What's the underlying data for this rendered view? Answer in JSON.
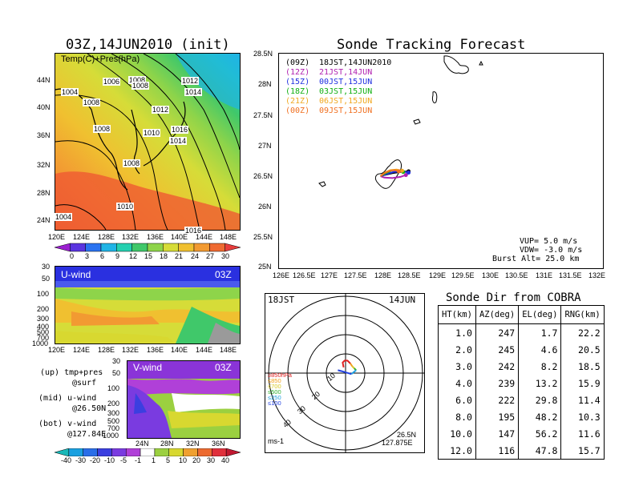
{
  "titles": {
    "left": "03Z,14JUN2010 (init)",
    "right": "Sonde Tracking Forecast",
    "table": "Sonde Dir from COBRA"
  },
  "temp_map": {
    "label": "Temp(C)+Pres(hPa)",
    "lat_labels": [
      "44N",
      "40N",
      "36N",
      "32N",
      "28N",
      "24N"
    ],
    "lon_labels": [
      "120E",
      "124E",
      "128E",
      "132E",
      "136E",
      "140E",
      "144E",
      "148E"
    ],
    "isobars": [
      "1004",
      "1006",
      "1008",
      "1008",
      "1012",
      "1014",
      "1008",
      "1012",
      "1010",
      "1016",
      "1014",
      "1008",
      "1010",
      "1008",
      "1016"
    ],
    "colorbar_labels": [
      "0",
      "3",
      "6",
      "9",
      "12",
      "15",
      "18",
      "21",
      "24",
      "27",
      "30"
    ],
    "colorbar_colors": [
      "#9b1fd0",
      "#5a35e0",
      "#2a73f0",
      "#20b4e6",
      "#25d0b0",
      "#40c86a",
      "#8ed44a",
      "#d6dc38",
      "#f0c030",
      "#f29a32",
      "#ef6a32",
      "#e83c3c"
    ]
  },
  "u_wind": {
    "label": "U-wind",
    "time": "03Z",
    "p_labels": [
      "30",
      "50",
      "100",
      "200",
      "300",
      "400",
      "500",
      "700",
      "1000"
    ],
    "lon_labels": [
      "120E",
      "124E",
      "128E",
      "132E",
      "136E",
      "140E",
      "144E",
      "148E"
    ]
  },
  "v_wind": {
    "label": "V-wind",
    "time": "03Z",
    "p_labels": [
      "30",
      "50",
      "100",
      "200",
      "300",
      "500",
      "700",
      "1000"
    ],
    "lat_labels": [
      "24N",
      "28N",
      "32N",
      "36N"
    ],
    "colorbar_labels": [
      "-40",
      "-30",
      "-20",
      "-10",
      "-5",
      "-1",
      "1",
      "5",
      "10",
      "20",
      "30",
      "40"
    ],
    "colorbar_colors": [
      "#19b8b8",
      "#1aa0e0",
      "#2a6ee8",
      "#3b3fe0",
      "#7a3be0",
      "#b040d8",
      "#ffffff",
      "#9bd040",
      "#d8d830",
      "#f0a030",
      "#ec6a30",
      "#e0303c",
      "#c01830"
    ]
  },
  "legend_notes": [
    {
      "name": "(up) tmp+pres",
      "sub": "@surf"
    },
    {
      "name": "(mid) u-wind",
      "sub": "@26.50N"
    },
    {
      "name": "(bot) v-wind",
      "sub": "@127.84E"
    }
  ],
  "track_map": {
    "lat_labels": [
      "28.5N",
      "28N",
      "27.5N",
      "27N",
      "26.5N",
      "26N",
      "25.5N",
      "25N"
    ],
    "lon_labels": [
      "126E",
      "126.5E",
      "127E",
      "127.5E",
      "128E",
      "128.5E",
      "129E",
      "129.5E",
      "130E",
      "130.5E",
      "131E",
      "131.5E",
      "132E"
    ],
    "legend": [
      {
        "time": "(09Z)",
        "jst": "18JST,14JUN2010",
        "color": "#000000"
      },
      {
        "time": "(12Z)",
        "jst": "21JST,14JUN",
        "color": "#b020b0"
      },
      {
        "time": "(15Z)",
        "jst": "00JST,15JUN",
        "color": "#2030e0"
      },
      {
        "time": "(18Z)",
        "jst": "03JST,15JUN",
        "color": "#10b010"
      },
      {
        "time": "(21Z)",
        "jst": "06JST,15JUN",
        "color": "#f0a820"
      },
      {
        "time": "(00Z)",
        "jst": "09JST,15JUN",
        "color": "#f07020"
      }
    ],
    "params": {
      "vup": "VUP= 5.0 m/s",
      "vdw": "VDW= -3.0 m/s",
      "burst": "Burst Alt= 25.0 km"
    }
  },
  "polar": {
    "time_left": "18JST",
    "date_right": "14JUN",
    "ring_labels": [
      "10",
      "20",
      "30",
      "40"
    ],
    "units": "ms-1",
    "loc_lat": "26.5N",
    "loc_lon": "127.875E",
    "level_legend": [
      {
        "label": "≥850hPa",
        "color": "#e02020"
      },
      {
        "label": "≤850",
        "color": "#f0a020"
      },
      {
        "label": "≤700",
        "color": "#d8c820"
      },
      {
        "label": "≤500",
        "color": "#30b030"
      },
      {
        "label": "≤250",
        "color": "#20a0e0"
      },
      {
        "label": "≤100",
        "color": "#2040e0"
      }
    ]
  },
  "table": {
    "headers": [
      "HT(km)",
      "AZ(deg)",
      "EL(deg)",
      "RNG(km)"
    ],
    "rows": [
      [
        "1.0",
        "247",
        "1.7",
        "22.2"
      ],
      [
        "2.0",
        "245",
        "4.6",
        "20.5"
      ],
      [
        "3.0",
        "242",
        "8.2",
        "18.5"
      ],
      [
        "4.0",
        "239",
        "13.2",
        "15.9"
      ],
      [
        "6.0",
        "222",
        "29.8",
        "11.4"
      ],
      [
        "8.0",
        "195",
        "48.2",
        "10.3"
      ],
      [
        "10.0",
        "147",
        "56.2",
        "11.6"
      ],
      [
        "12.0",
        "116",
        "47.8",
        "15.7"
      ]
    ]
  },
  "chart_data": [
    {
      "type": "table",
      "title": "Sonde Dir from COBRA",
      "columns": [
        "HT(km)",
        "AZ(deg)",
        "EL(deg)",
        "RNG(km)"
      ],
      "rows": [
        [
          1.0,
          247,
          1.7,
          22.2
        ],
        [
          2.0,
          245,
          4.6,
          20.5
        ],
        [
          3.0,
          242,
          8.2,
          18.5
        ],
        [
          4.0,
          239,
          13.2,
          15.9
        ],
        [
          6.0,
          222,
          29.8,
          11.4
        ],
        [
          8.0,
          195,
          48.2,
          10.3
        ],
        [
          10.0,
          147,
          56.2,
          11.6
        ],
        [
          12.0,
          116,
          47.8,
          15.7
        ]
      ]
    },
    {
      "type": "heatmap",
      "title": "03Z,14JUN2010 (init)",
      "subtitle": "Temp(C)+Pres(hPa)",
      "xlim": [
        120,
        150
      ],
      "ylim": [
        22,
        47
      ],
      "colorbar": [
        0,
        3,
        6,
        9,
        12,
        15,
        18,
        21,
        24,
        27,
        30
      ]
    },
    {
      "type": "line",
      "title": "Sonde Tracking Forecast",
      "xlim": [
        126,
        132
      ],
      "ylim": [
        25,
        28.5
      ],
      "series": [
        {
          "name": "(09Z)",
          "x": [
            127.88,
            127.95,
            128.1,
            128.25,
            128.4
          ],
          "y": [
            26.5,
            26.52,
            26.55,
            26.57,
            26.58
          ]
        },
        {
          "name": "(12Z)",
          "x": [
            127.88,
            127.95,
            128.1,
            128.25,
            128.35
          ],
          "y": [
            26.5,
            26.48,
            26.47,
            26.49,
            26.52
          ]
        },
        {
          "name": "(15Z)",
          "x": [
            127.88,
            127.98,
            128.12,
            128.28,
            128.4
          ],
          "y": [
            26.5,
            26.53,
            26.57,
            26.58,
            26.56
          ]
        },
        {
          "name": "(18Z)",
          "x": [
            127.88,
            127.98,
            128.1,
            128.2,
            128.3
          ],
          "y": [
            26.5,
            26.55,
            26.6,
            26.6,
            26.57
          ]
        },
        {
          "name": "(21Z)",
          "x": [
            127.88,
            127.96,
            128.06,
            128.18,
            128.28
          ],
          "y": [
            26.5,
            26.56,
            26.6,
            26.61,
            26.59
          ]
        },
        {
          "name": "(00Z)",
          "x": [
            127.88,
            127.95,
            128.05,
            128.15,
            128.22
          ],
          "y": [
            26.5,
            26.55,
            26.59,
            26.6,
            26.58
          ]
        }
      ]
    },
    {
      "type": "line",
      "title": "hodograph",
      "rings": [
        10,
        20,
        30,
        40
      ],
      "series": [
        {
          "name": "≥850hPa",
          "u": [
            -1,
            -1.5,
            -0.5,
            1,
            2.5
          ],
          "v": [
            3,
            5.5,
            6.5,
            6.5,
            5
          ]
        },
        {
          "name": "≤850",
          "u": [
            2.5,
            3.5
          ],
          "v": [
            5,
            3.5
          ]
        },
        {
          "name": "≤700",
          "u": [
            3.5,
            4.5
          ],
          "v": [
            3.5,
            2.5
          ]
        },
        {
          "name": "≤500",
          "u": [
            4.5,
            5.5
          ],
          "v": [
            2.5,
            1.5
          ]
        },
        {
          "name": "≤250",
          "u": [
            5.5,
            3
          ],
          "v": [
            1.5,
            -0.5
          ]
        },
        {
          "name": "≤100",
          "u": [
            3,
            -2,
            -4
          ],
          "v": [
            -0.5,
            1,
            1.5
          ]
        }
      ]
    }
  ]
}
